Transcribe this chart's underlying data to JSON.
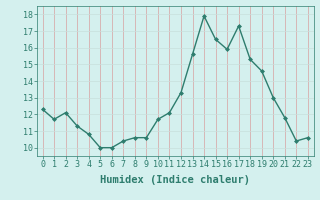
{
  "x": [
    0,
    1,
    2,
    3,
    4,
    5,
    6,
    7,
    8,
    9,
    10,
    11,
    12,
    13,
    14,
    15,
    16,
    17,
    18,
    19,
    20,
    21,
    22,
    23
  ],
  "y": [
    12.3,
    11.7,
    12.1,
    11.3,
    10.8,
    10.0,
    10.0,
    10.4,
    10.6,
    10.6,
    11.7,
    12.1,
    13.3,
    15.6,
    17.9,
    16.5,
    15.9,
    17.3,
    15.3,
    14.6,
    13.0,
    11.8,
    10.4,
    10.6
  ],
  "line_color": "#2e7d6e",
  "marker": "D",
  "marker_size": 2,
  "bg_color": "#d4f0ee",
  "grid_color": "#c8e0dc",
  "grid_color_minor": "#e0eeec",
  "xlabel": "Humidex (Indice chaleur)",
  "xlabel_fontsize": 7.5,
  "ylim": [
    9.5,
    18.5
  ],
  "xlim": [
    -0.5,
    23.5
  ],
  "yticks": [
    10,
    11,
    12,
    13,
    14,
    15,
    16,
    17,
    18
  ],
  "xticks": [
    0,
    1,
    2,
    3,
    4,
    5,
    6,
    7,
    8,
    9,
    10,
    11,
    12,
    13,
    14,
    15,
    16,
    17,
    18,
    19,
    20,
    21,
    22,
    23
  ],
  "tick_fontsize": 6,
  "line_width": 1.0
}
